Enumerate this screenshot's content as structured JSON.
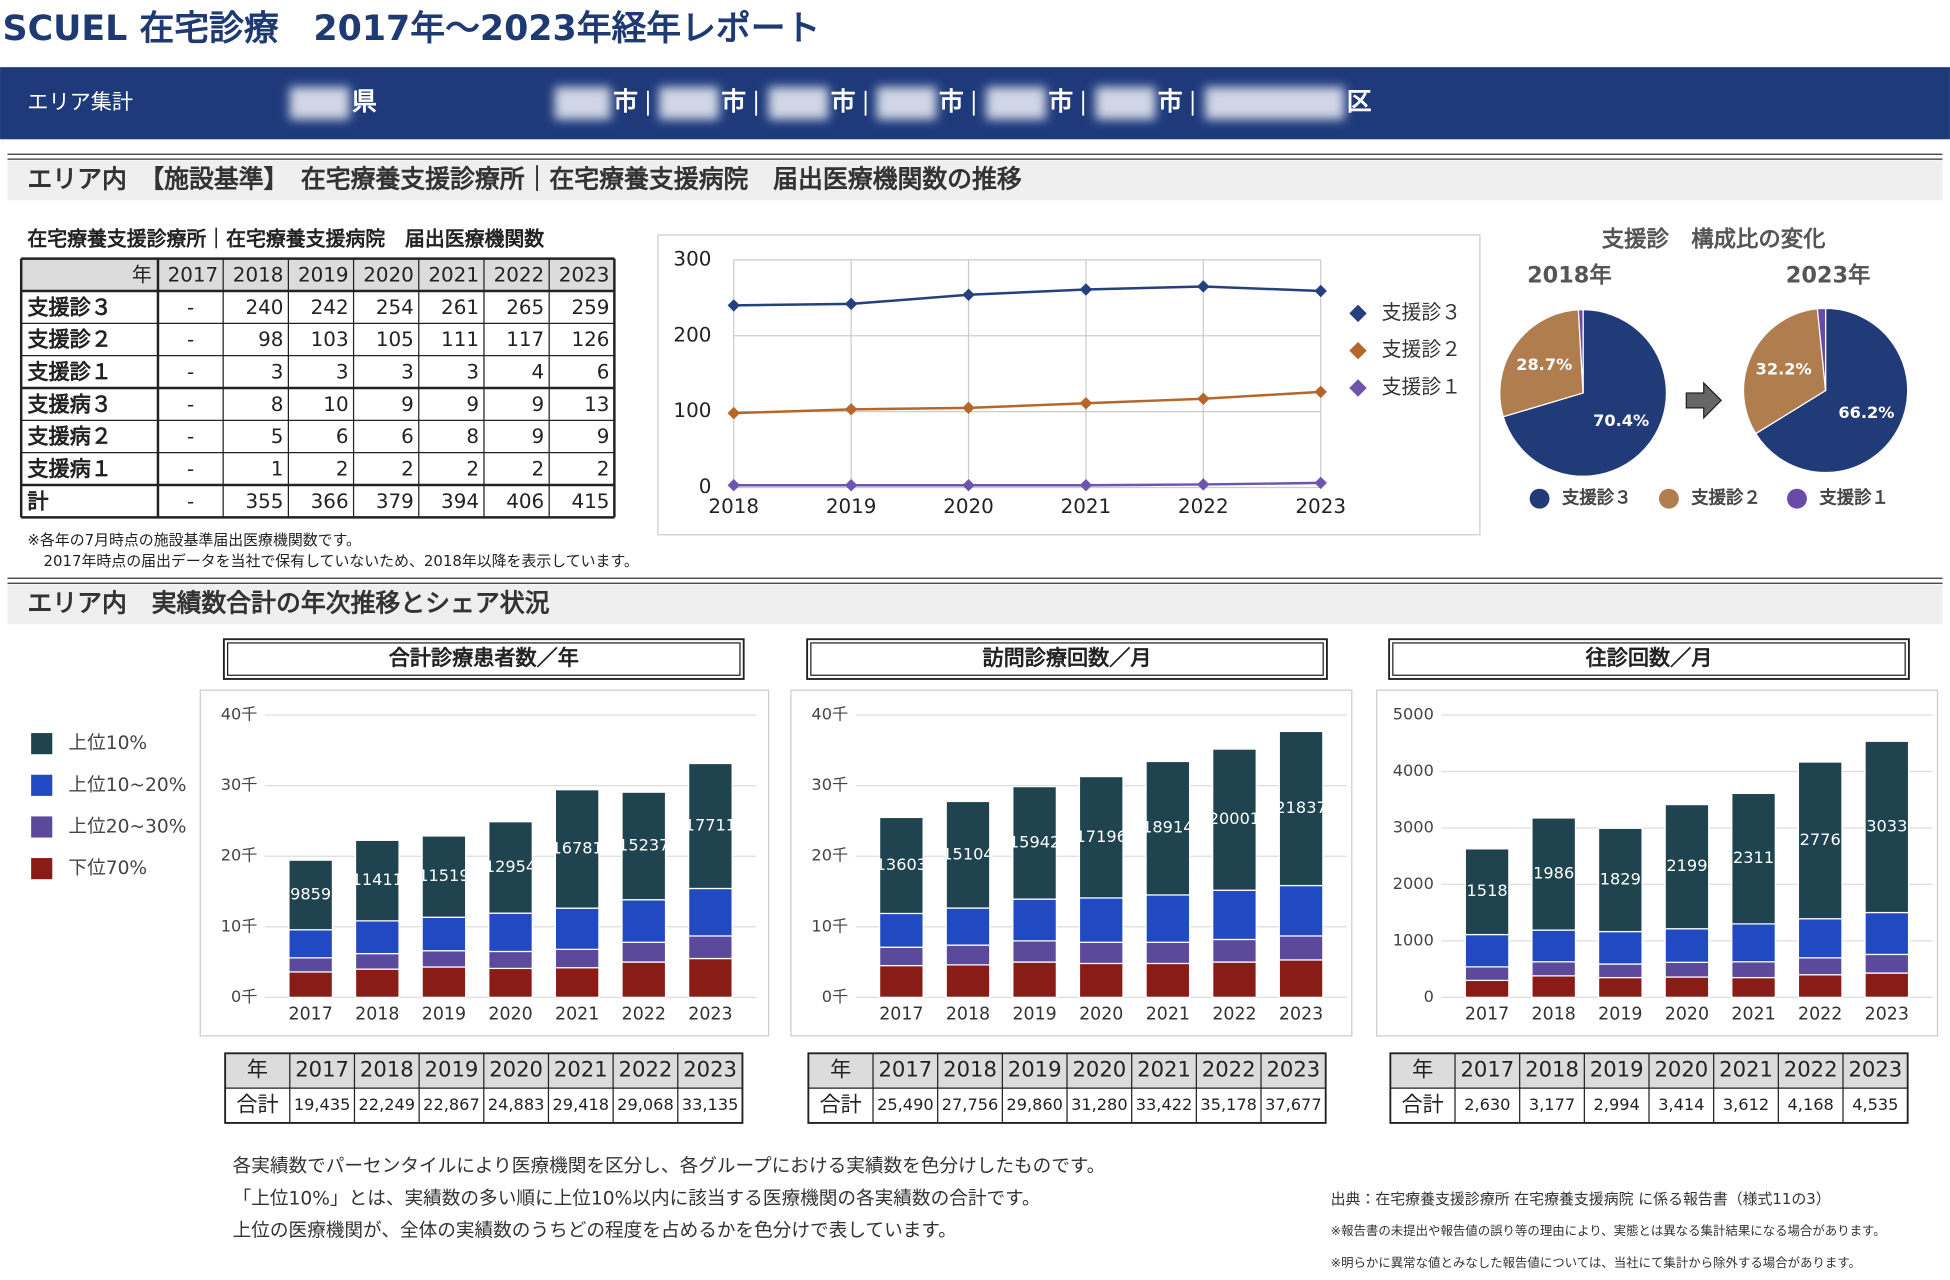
{
  "header": {
    "title": "SCUEL 在宅診療　2017年〜2023年経年レポート",
    "area_label": "エリア集計",
    "areas": [
      "県",
      "市",
      "市",
      "市",
      "市",
      "市",
      "市",
      "区"
    ]
  },
  "section1": {
    "title": "エリア内　【施設基準】　在宅療養支援診療所｜在宅療養支援病院　届出医療機関数の推移"
  },
  "facility_table": {
    "title": "在宅療養支援診療所｜在宅療養支援病院　届出医療機関数",
    "header": [
      "年",
      "2017",
      "2018",
      "2019",
      "2020",
      "2021",
      "2022",
      "2023"
    ],
    "rows": [
      [
        "支援診３",
        "-",
        "240",
        "242",
        "254",
        "261",
        "265",
        "259"
      ],
      [
        "支援診２",
        "-",
        "98",
        "103",
        "105",
        "111",
        "117",
        "126"
      ],
      [
        "支援診１",
        "-",
        "3",
        "3",
        "3",
        "3",
        "4",
        "6"
      ],
      [
        "支援病３",
        "-",
        "8",
        "10",
        "9",
        "9",
        "9",
        "13"
      ],
      [
        "支援病２",
        "-",
        "5",
        "6",
        "6",
        "8",
        "9",
        "9"
      ],
      [
        "支援病１",
        "-",
        "1",
        "2",
        "2",
        "2",
        "2",
        "2"
      ],
      [
        "計",
        "-",
        "355",
        "366",
        "379",
        "394",
        "406",
        "415"
      ]
    ],
    "notes": [
      "※各年の7月時点の施設基準届出医療機関数です。",
      "2017年時点の届出データを当社で保有していないため、2018年以降を表示しています。"
    ]
  },
  "section2": {
    "title": "エリア内　実績数合計の年次推移とシェア状況"
  },
  "notes": [
    "各実績数でパーセンタイルにより医療機関を区分し、各グループにおける実績数を色分けしたものです。",
    "「上位10%」とは、実績数の多い順に上位10%以内に該当する医療機関の各実績数の合計です。",
    "上位の医療機関が、全体の実績数のうちどの程度を占めるかを色分けで表しています。"
  ],
  "source": [
    "出典：在宅療養支援診療所 在宅療養支援病院 に係る報告書（様式11の3）",
    "※報告書の未提出や報告値の誤り等の理由により、実態とは異なる集計結果になる場合があります。",
    "※明らかに異常な値とみなした報告値については、当社にて集計から除外する場合があります。"
  ],
  "chart_data": [
    {
      "type": "line",
      "categories": [
        "2018",
        "2019",
        "2020",
        "2021",
        "2022",
        "2023"
      ],
      "ylim": [
        0,
        300
      ],
      "yticks": [
        0,
        100,
        200,
        300
      ],
      "grid": true,
      "series": [
        {
          "name": "支援診３",
          "color": "#263f7e",
          "values": [
            240,
            242,
            254,
            261,
            265,
            259
          ]
        },
        {
          "name": "支援診２",
          "color": "#b5662a",
          "values": [
            98,
            103,
            105,
            111,
            117,
            126
          ]
        },
        {
          "name": "支援診１",
          "color": "#6e54ad",
          "values": [
            3,
            3,
            3,
            3,
            4,
            6
          ]
        }
      ]
    },
    {
      "type": "pie",
      "title": "支援診　構成比の変化",
      "subtitle": "2018年",
      "labels": [
        "支援診３",
        "支援診２",
        "支援診１"
      ],
      "colors": [
        "#213a78",
        "#b07d4e",
        "#6a4aa8"
      ],
      "values": [
        70.4,
        28.7,
        0.9
      ],
      "value_labels": [
        "70.4%",
        "28.7%",
        null
      ]
    },
    {
      "type": "pie",
      "subtitle": "2023年",
      "labels": [
        "支援診３",
        "支援診２",
        "支援診１"
      ],
      "colors": [
        "#213a78",
        "#b07d4e",
        "#6a4aa8"
      ],
      "values": [
        66.2,
        32.2,
        1.6
      ],
      "value_labels": [
        "66.2%",
        "32.2%",
        null
      ]
    },
    {
      "type": "stacked-bar",
      "title": "合計診療患者数／年",
      "categories": [
        "2017",
        "2018",
        "2019",
        "2020",
        "2021",
        "2022",
        "2023"
      ],
      "ylim": [
        0,
        40000
      ],
      "yticks": [
        {
          "value": 0,
          "label": "0千"
        },
        {
          "value": 10000,
          "label": "10千"
        },
        {
          "value": 20000,
          "label": "20千"
        },
        {
          "value": 30000,
          "label": "30千"
        },
        {
          "value": 40000,
          "label": "40千"
        }
      ],
      "series": [
        {
          "name": "上位10%",
          "color": "#1f434f",
          "values": [
            9859,
            11411,
            11519,
            12954,
            16781,
            15237,
            17711
          ]
        },
        {
          "name": "上位10~20%",
          "color": "#2149c1",
          "values": [
            3976,
            4638,
            4748,
            5429,
            5837,
            6031,
            6724
          ]
        },
        {
          "name": "上位20~30%",
          "color": "#5b4a9c",
          "values": [
            2000,
            2200,
            2300,
            2400,
            2600,
            2800,
            3200
          ]
        },
        {
          "name": "下位70%",
          "color": "#8a1c17",
          "values": [
            3600,
            4000,
            4300,
            4100,
            4200,
            5000,
            5500
          ]
        }
      ],
      "table": {
        "header": "年",
        "row_label": "合計",
        "totals": [
          "19,435",
          "22,249",
          "22,867",
          "24,883",
          "29,418",
          "29,068",
          "33,135"
        ]
      }
    },
    {
      "type": "stacked-bar",
      "title": "訪問診療回数／月",
      "categories": [
        "2017",
        "2018",
        "2019",
        "2020",
        "2021",
        "2022",
        "2023"
      ],
      "ylim": [
        0,
        40000
      ],
      "yticks": [
        {
          "value": 0,
          "label": "0千"
        },
        {
          "value": 10000,
          "label": "10千"
        },
        {
          "value": 20000,
          "label": "20千"
        },
        {
          "value": 30000,
          "label": "30千"
        },
        {
          "value": 40000,
          "label": "40千"
        }
      ],
      "series": [
        {
          "name": "上位10%",
          "color": "#1f434f",
          "values": [
            13603,
            15104,
            15942,
            17196,
            18914,
            20001,
            21837
          ]
        },
        {
          "name": "上位10~20%",
          "color": "#2149c1",
          "values": [
            4787,
            5252,
            5918,
            6284,
            6708,
            6977,
            7140
          ]
        },
        {
          "name": "上位20~30%",
          "color": "#5b4a9c",
          "values": [
            2600,
            2800,
            3000,
            3000,
            3000,
            3200,
            3400
          ]
        },
        {
          "name": "下位70%",
          "color": "#8a1c17",
          "values": [
            4500,
            4600,
            5000,
            4800,
            4800,
            5000,
            5300
          ]
        }
      ],
      "table": {
        "header": "年",
        "row_label": "合計",
        "totals": [
          "25,490",
          "27,756",
          "29,860",
          "31,280",
          "33,422",
          "35,178",
          "37,677"
        ]
      }
    },
    {
      "type": "stacked-bar",
      "title": "往診回数／月",
      "categories": [
        "2017",
        "2018",
        "2019",
        "2020",
        "2021",
        "2022",
        "2023"
      ],
      "ylim": [
        0,
        5000
      ],
      "yticks": [
        0,
        1000,
        2000,
        3000,
        4000,
        5000
      ],
      "series": [
        {
          "name": "上位10%",
          "color": "#1f434f",
          "values": [
            1518,
            1986,
            1829,
            2199,
            2311,
            2776,
            3033
          ]
        },
        {
          "name": "上位10~20%",
          "color": "#2149c1",
          "values": [
            572,
            561,
            575,
            595,
            671,
            692,
            742
          ]
        },
        {
          "name": "上位20~30%",
          "color": "#5b4a9c",
          "values": [
            240,
            250,
            240,
            260,
            280,
            300,
            330
          ]
        },
        {
          "name": "下位70%",
          "color": "#8a1c17",
          "values": [
            300,
            380,
            350,
            360,
            350,
            400,
            430
          ]
        }
      ],
      "table": {
        "header": "年",
        "row_label": "合計",
        "totals": [
          "2,630",
          "3,177",
          "2,994",
          "3,414",
          "3,612",
          "4,168",
          "4,535"
        ]
      }
    }
  ]
}
